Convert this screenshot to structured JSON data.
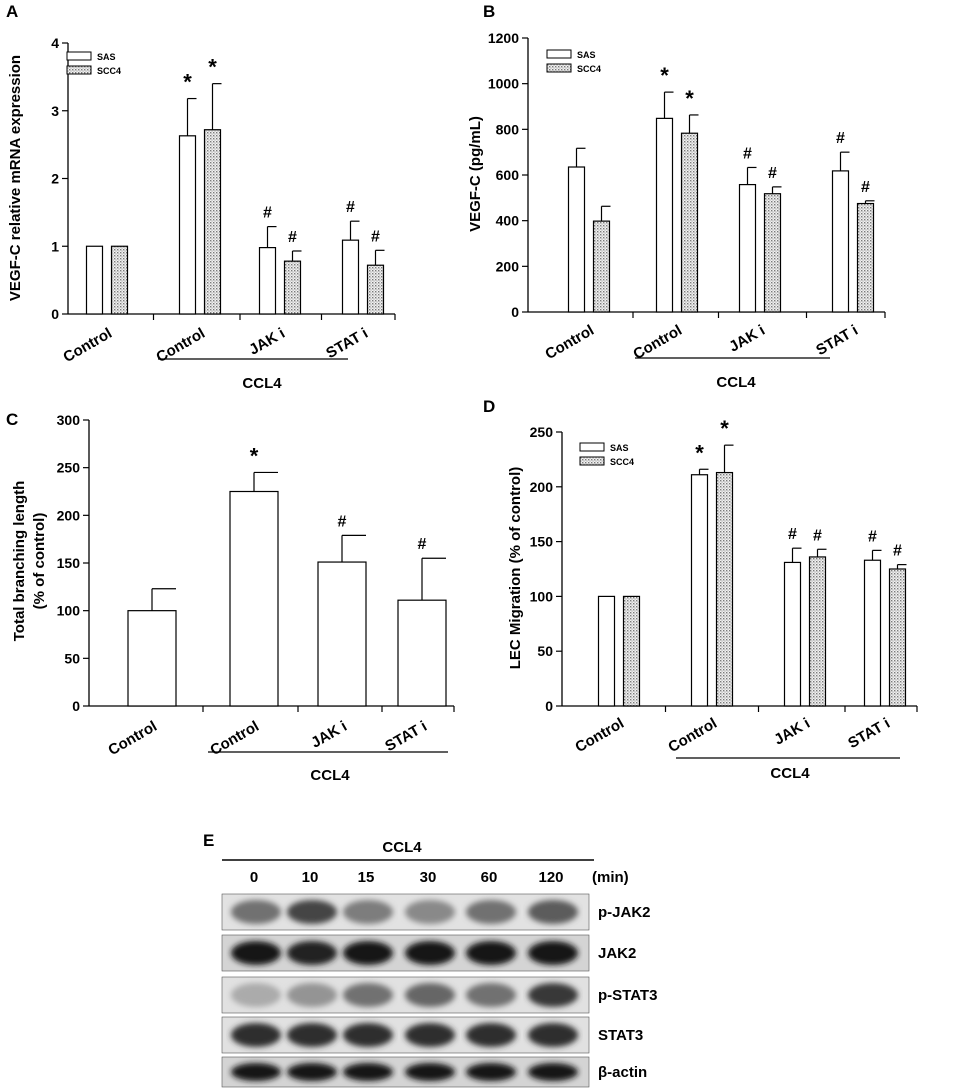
{
  "chart_data": [
    {
      "panel": "A",
      "type": "bar",
      "ylabel": "VEGF-C relative mRNA expression",
      "ylim": [
        0,
        4
      ],
      "yticks": [
        0,
        1,
        2,
        3,
        4
      ],
      "categories": [
        "Control",
        "Control",
        "JAK i",
        "STAT i"
      ],
      "group_label": "CCL4",
      "series": [
        {
          "name": "SAS",
          "values": [
            1.0,
            2.63,
            0.98,
            1.09
          ],
          "errors": [
            0.0,
            0.55,
            0.31,
            0.28
          ]
        },
        {
          "name": "SCC4",
          "values": [
            1.0,
            2.72,
            0.78,
            0.72
          ],
          "errors": [
            0.0,
            0.68,
            0.15,
            0.22
          ]
        }
      ],
      "marks": [
        "",
        "*",
        "#",
        "#"
      ],
      "legend": "top-left"
    },
    {
      "panel": "B",
      "type": "bar",
      "ylabel": "VEGF-C (pg/mL)",
      "ylim": [
        0,
        1200
      ],
      "yticks": [
        0,
        200,
        400,
        600,
        800,
        1000,
        1200
      ],
      "categories": [
        "Control",
        "Control",
        "JAK i",
        "STAT i"
      ],
      "group_label": "CCL4",
      "series": [
        {
          "name": "SAS",
          "values": [
            635,
            848,
            558,
            618
          ],
          "errors": [
            82,
            115,
            75,
            82
          ]
        },
        {
          "name": "SCC4",
          "values": [
            398,
            783,
            518,
            475
          ],
          "errors": [
            65,
            80,
            30,
            12
          ]
        }
      ],
      "marks": [
        "",
        "*",
        "#",
        "#"
      ],
      "legend": "top-left"
    },
    {
      "panel": "C",
      "type": "bar",
      "ylabel": "Total branching length (% of control)",
      "ylabel_lines": [
        "Total branching length",
        "(% of control)"
      ],
      "ylim": [
        0,
        300
      ],
      "yticks": [
        0,
        50,
        100,
        150,
        200,
        250,
        300
      ],
      "categories": [
        "Control",
        "Control",
        "JAK i",
        "STAT i"
      ],
      "group_label": "CCL4",
      "series": [
        {
          "name": "",
          "values": [
            100,
            225,
            151,
            111
          ],
          "errors": [
            23,
            20,
            28,
            44
          ]
        }
      ],
      "marks": [
        "",
        "*",
        "#",
        "#"
      ]
    },
    {
      "panel": "D",
      "type": "bar",
      "ylabel": "LEC Migration (% of control)",
      "ylim": [
        0,
        250
      ],
      "yticks": [
        0,
        50,
        100,
        150,
        200,
        250
      ],
      "categories": [
        "Control",
        "Control",
        "JAK i",
        "STAT i"
      ],
      "group_label": "CCL4",
      "series": [
        {
          "name": "SAS",
          "values": [
            100,
            211,
            131,
            133
          ],
          "errors": [
            0,
            5,
            13,
            9
          ]
        },
        {
          "name": "SCC4",
          "values": [
            100,
            213,
            136,
            125
          ],
          "errors": [
            0,
            25,
            7,
            4
          ]
        }
      ],
      "marks": [
        "",
        "*",
        "#",
        "#"
      ],
      "legend": "top-left"
    }
  ],
  "western_blot": {
    "panel": "E",
    "treatment_label": "CCL4",
    "time_unit": "(min)",
    "timepoints": [
      "0",
      "10",
      "15",
      "30",
      "60",
      "120"
    ],
    "bands": [
      {
        "label": "p-JAK2",
        "intensity": [
          0.55,
          0.75,
          0.5,
          0.45,
          0.55,
          0.65
        ]
      },
      {
        "label": "JAK2",
        "intensity": [
          0.95,
          0.9,
          0.95,
          0.95,
          0.95,
          0.95
        ]
      },
      {
        "label": "p-STAT3",
        "intensity": [
          0.3,
          0.4,
          0.55,
          0.6,
          0.55,
          0.8
        ]
      },
      {
        "label": "STAT3",
        "intensity": [
          0.85,
          0.85,
          0.85,
          0.85,
          0.85,
          0.85
        ]
      },
      {
        "label": "β-actin",
        "intensity": [
          0.95,
          0.95,
          0.95,
          0.95,
          0.95,
          0.95
        ]
      }
    ]
  }
}
